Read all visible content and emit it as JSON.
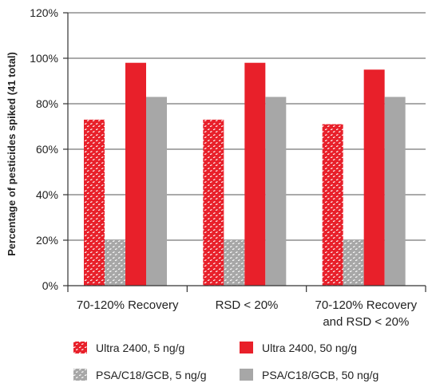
{
  "chart_data": {
    "type": "bar",
    "ylabel": "Percentage of pesticides spiked (41 total)",
    "ylim": [
      0,
      120
    ],
    "yticks": [
      0,
      20,
      40,
      60,
      80,
      100,
      120
    ],
    "ytick_labels": [
      "0%",
      "20%",
      "40%",
      "60%",
      "80%",
      "100%",
      "120%"
    ],
    "grid": true,
    "legend_position": "bottom",
    "categories": [
      "70-120% Recovery",
      "RSD < 20%",
      "70-120% Recovery and RSD < 20%"
    ],
    "category_lines": [
      [
        "70-120% Recovery"
      ],
      [
        "RSD < 20%"
      ],
      [
        "70-120% Recovery",
        "and RSD < 20%"
      ]
    ],
    "series": [
      {
        "name": "Ultra 2400, 5 ng/g",
        "values": [
          73,
          73,
          71
        ],
        "color": "#e8202a",
        "pattern": "dotted"
      },
      {
        "name": "PSA/C18/GCB, 5 ng/g",
        "values": [
          20,
          20,
          20
        ],
        "color": "#a7a7a7",
        "pattern": "dotted"
      },
      {
        "name": "Ultra 2400, 50 ng/g",
        "values": [
          98,
          98,
          95
        ],
        "color": "#e8202a",
        "pattern": "solid"
      },
      {
        "name": "PSA/C18/GCB, 50 ng/g",
        "values": [
          83,
          83,
          83
        ],
        "color": "#a7a7a7",
        "pattern": "solid"
      }
    ],
    "legend_order": [
      0,
      2,
      1,
      3
    ]
  }
}
